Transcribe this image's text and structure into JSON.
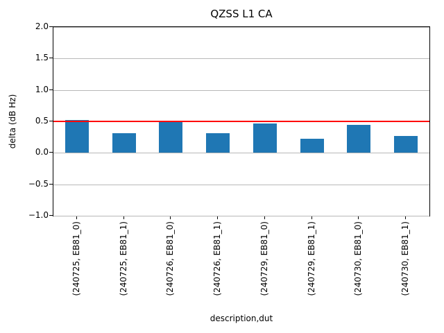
{
  "chart_data": {
    "type": "bar",
    "title": "QZSS L1 CA",
    "xlabel": "description,dut",
    "ylabel": "delta (dB Hz)",
    "categories": [
      "(240725, EB81_0)",
      "(240725, EB81_1)",
      "(240726, EB81_0)",
      "(240726, EB81_1)",
      "(240729, EB81_0)",
      "(240729, EB81_1)",
      "(240730, EB81_0)",
      "(240730, EB81_1)"
    ],
    "values": [
      0.52,
      0.31,
      0.5,
      0.31,
      0.47,
      0.22,
      0.44,
      0.27
    ],
    "ylim": [
      -1.0,
      2.0
    ],
    "yticks": [
      -1.0,
      -0.5,
      0.0,
      0.5,
      1.0,
      1.5,
      2.0
    ],
    "grid": "horizontal",
    "legend": "none",
    "bar_color": "#1f77b4",
    "grid_color": "#b8b8b8",
    "reference_line": {
      "y": 0.5,
      "color": "#ff0000"
    }
  }
}
